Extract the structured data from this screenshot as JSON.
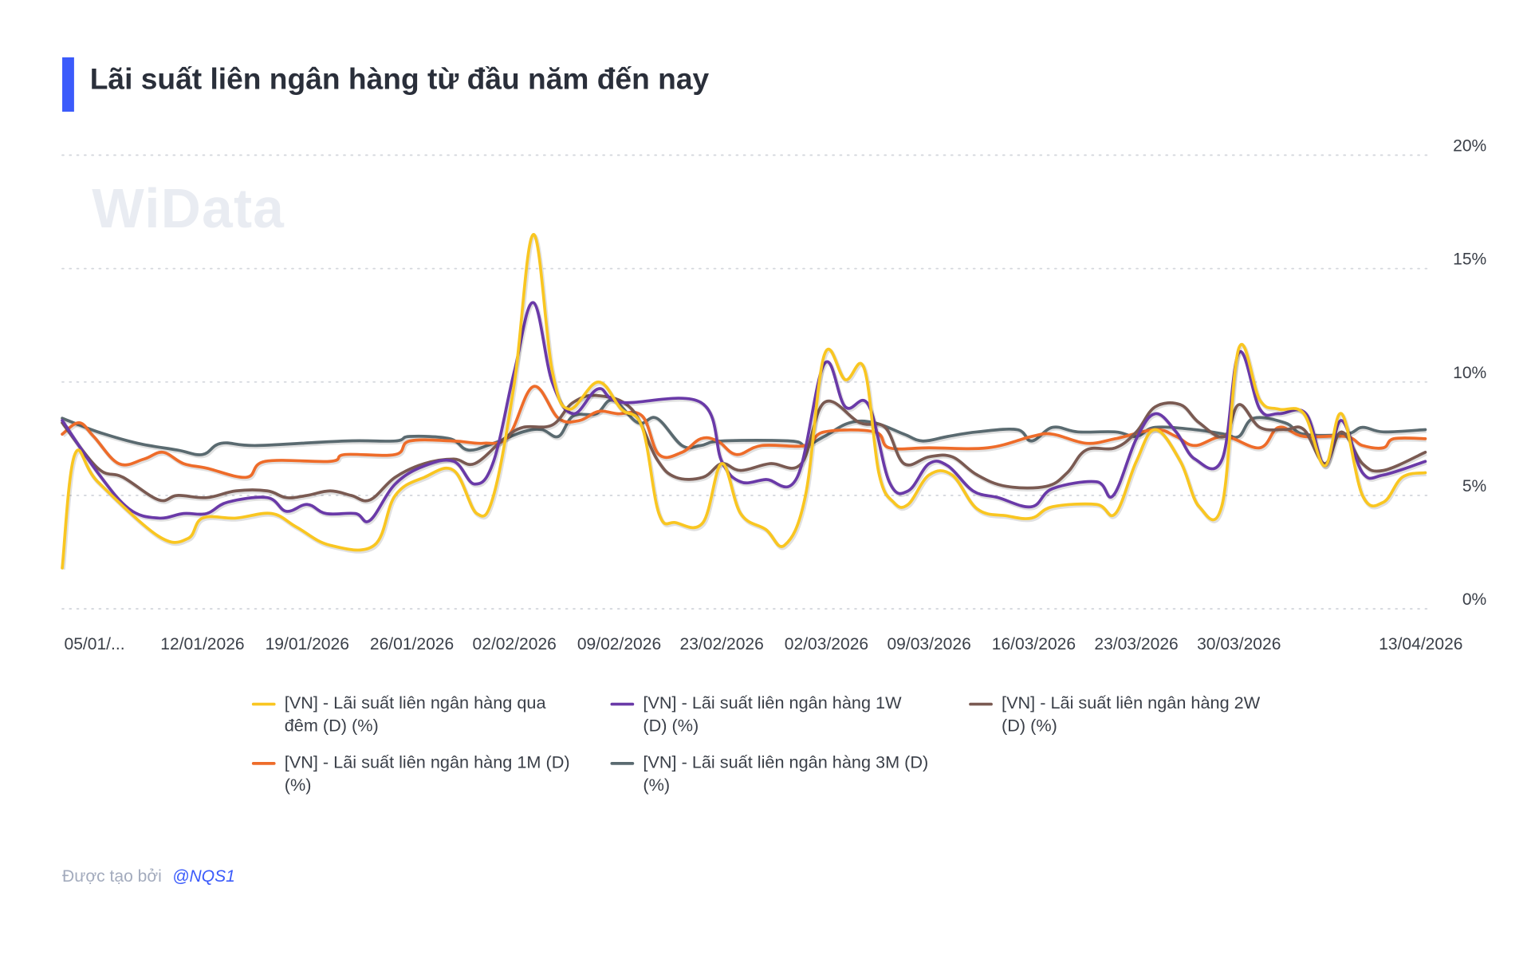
{
  "title": "Lãi suất liên ngân hàng từ đầu năm đến nay",
  "watermark": "WiData",
  "footer": {
    "prefix": "Được tạo bởi",
    "author": "@NQS1"
  },
  "chart_data": {
    "type": "line",
    "title": "Lãi suất liên ngân hàng từ đầu năm đến nay",
    "xlabel": "",
    "ylabel": "",
    "x_unit": "trading-day index from 05/01/2026",
    "xlim": [
      0,
      65.1
    ],
    "ylim": [
      0,
      20
    ],
    "grid": true,
    "y_ticks": [
      {
        "value": 20,
        "label": "20%"
      },
      {
        "value": 15,
        "label": "15%"
      },
      {
        "value": 10,
        "label": "10%"
      },
      {
        "value": 5,
        "label": "5%"
      },
      {
        "value": 0,
        "label": "0%"
      }
    ],
    "x_ticks": [
      {
        "value": 1.6,
        "label": "05/01/..."
      },
      {
        "value": 6.7,
        "label": "12/01/2026"
      },
      {
        "value": 11.7,
        "label": "19/01/2026"
      },
      {
        "value": 16.7,
        "label": "26/01/2026"
      },
      {
        "value": 21.6,
        "label": "02/02/2026"
      },
      {
        "value": 26.6,
        "label": "09/02/2026"
      },
      {
        "value": 31.5,
        "label": "23/02/2026"
      },
      {
        "value": 36.5,
        "label": "02/03/2026"
      },
      {
        "value": 41.4,
        "label": "09/03/2026"
      },
      {
        "value": 46.4,
        "label": "16/03/2026"
      },
      {
        "value": 51.3,
        "label": "23/03/2026"
      },
      {
        "value": 56.2,
        "label": "30/03/2026"
      },
      {
        "value": 64.7,
        "label": "13/04/2026"
      }
    ],
    "legend_position": "bottom",
    "series": [
      {
        "name": "[VN] - Lãi suất liên ngân hàng qua đêm (D) (%)",
        "color": "#f9c621",
        "points": [
          [
            0,
            1.8
          ],
          [
            0.6,
            6.8
          ],
          [
            1.7,
            5.6
          ],
          [
            4.6,
            3.2
          ],
          [
            6.0,
            3.1
          ],
          [
            6.7,
            4.0
          ],
          [
            8.3,
            4.0
          ],
          [
            10.0,
            4.2
          ],
          [
            11.2,
            3.6
          ],
          [
            12.8,
            2.8
          ],
          [
            14.9,
            2.8
          ],
          [
            15.9,
            5.0
          ],
          [
            17.3,
            5.8
          ],
          [
            18.7,
            6.1
          ],
          [
            19.8,
            4.2
          ],
          [
            20.6,
            5.0
          ],
          [
            21.6,
            10.0
          ],
          [
            22.5,
            16.5
          ],
          [
            23.4,
            10.5
          ],
          [
            24.2,
            8.8
          ],
          [
            25.6,
            10.0
          ],
          [
            26.7,
            8.8
          ],
          [
            27.7,
            8.0
          ],
          [
            28.5,
            4.2
          ],
          [
            29.3,
            3.8
          ],
          [
            30.6,
            3.8
          ],
          [
            31.5,
            6.4
          ],
          [
            32.4,
            4.2
          ],
          [
            33.6,
            3.5
          ],
          [
            34.5,
            2.8
          ],
          [
            35.5,
            5.0
          ],
          [
            36.4,
            11.2
          ],
          [
            37.4,
            10.1
          ],
          [
            38.3,
            10.6
          ],
          [
            39.0,
            6.0
          ],
          [
            39.7,
            4.7
          ],
          [
            40.4,
            4.6
          ],
          [
            41.4,
            5.9
          ],
          [
            42.5,
            5.9
          ],
          [
            43.7,
            4.4
          ],
          [
            45.1,
            4.1
          ],
          [
            46.3,
            4.0
          ],
          [
            47.3,
            4.5
          ],
          [
            49.4,
            4.6
          ],
          [
            50.3,
            4.2
          ],
          [
            51.3,
            6.5
          ],
          [
            52.2,
            7.9
          ],
          [
            53.4,
            6.5
          ],
          [
            54.3,
            4.5
          ],
          [
            55.4,
            4.6
          ],
          [
            56.2,
            11.5
          ],
          [
            57.2,
            9.2
          ],
          [
            58.1,
            8.8
          ],
          [
            59.3,
            8.6
          ],
          [
            60.3,
            6.3
          ],
          [
            61.1,
            8.6
          ],
          [
            62.1,
            5.0
          ],
          [
            63.1,
            4.7
          ],
          [
            64.0,
            5.8
          ],
          [
            65.1,
            6.0
          ]
        ]
      },
      {
        "name": "[VN] - Lãi suất liên ngân hàng 1W (D) (%)",
        "color": "#6a3aa8",
        "points": [
          [
            0,
            8.3
          ],
          [
            1.7,
            6.0
          ],
          [
            3.2,
            4.4
          ],
          [
            4.6,
            4.0
          ],
          [
            5.8,
            4.2
          ],
          [
            6.9,
            4.2
          ],
          [
            7.9,
            4.7
          ],
          [
            9.8,
            4.9
          ],
          [
            10.7,
            4.3
          ],
          [
            11.7,
            4.6
          ],
          [
            12.6,
            4.2
          ],
          [
            14.0,
            4.2
          ],
          [
            14.7,
            3.9
          ],
          [
            15.9,
            5.5
          ],
          [
            17.3,
            6.3
          ],
          [
            18.7,
            6.5
          ],
          [
            19.7,
            5.5
          ],
          [
            20.6,
            6.5
          ],
          [
            21.6,
            10.5
          ],
          [
            22.5,
            13.5
          ],
          [
            23.4,
            10.0
          ],
          [
            24.4,
            8.6
          ],
          [
            25.6,
            9.7
          ],
          [
            26.7,
            9.1
          ],
          [
            30.5,
            9.1
          ],
          [
            31.5,
            6.5
          ],
          [
            32.4,
            5.6
          ],
          [
            33.6,
            5.7
          ],
          [
            35.1,
            5.8
          ],
          [
            36.4,
            10.8
          ],
          [
            37.4,
            8.9
          ],
          [
            38.5,
            9.0
          ],
          [
            39.5,
            5.6
          ],
          [
            40.4,
            5.2
          ],
          [
            41.4,
            6.4
          ],
          [
            42.3,
            6.3
          ],
          [
            43.5,
            5.2
          ],
          [
            44.7,
            4.9
          ],
          [
            46.3,
            4.5
          ],
          [
            47.3,
            5.3
          ],
          [
            49.4,
            5.6
          ],
          [
            50.2,
            5.0
          ],
          [
            51.3,
            7.5
          ],
          [
            52.2,
            8.6
          ],
          [
            53.2,
            7.8
          ],
          [
            54.1,
            6.6
          ],
          [
            55.4,
            6.6
          ],
          [
            56.2,
            11.3
          ],
          [
            57.2,
            8.8
          ],
          [
            58.1,
            8.6
          ],
          [
            59.4,
            8.6
          ],
          [
            60.3,
            6.3
          ],
          [
            61.1,
            8.3
          ],
          [
            62.1,
            6.0
          ],
          [
            63.1,
            5.9
          ],
          [
            65.1,
            6.5
          ]
        ]
      },
      {
        "name": "[VN] - Lãi suất liên ngân hàng 2W (D) (%)",
        "color": "#7a5a52",
        "points": [
          [
            0,
            8.2
          ],
          [
            1.7,
            6.2
          ],
          [
            2.9,
            5.8
          ],
          [
            4.6,
            4.8
          ],
          [
            5.5,
            5.0
          ],
          [
            6.9,
            4.9
          ],
          [
            8.3,
            5.2
          ],
          [
            9.8,
            5.2
          ],
          [
            10.7,
            4.9
          ],
          [
            11.7,
            5.0
          ],
          [
            12.8,
            5.2
          ],
          [
            13.8,
            5.0
          ],
          [
            14.7,
            4.8
          ],
          [
            15.9,
            5.8
          ],
          [
            17.3,
            6.4
          ],
          [
            18.7,
            6.6
          ],
          [
            19.7,
            6.4
          ],
          [
            21.1,
            7.5
          ],
          [
            22.0,
            8.0
          ],
          [
            23.4,
            8.1
          ],
          [
            24.4,
            9.1
          ],
          [
            25.6,
            9.4
          ],
          [
            27.2,
            8.8
          ],
          [
            28.4,
            6.6
          ],
          [
            29.3,
            5.8
          ],
          [
            30.6,
            5.8
          ],
          [
            31.5,
            6.4
          ],
          [
            32.4,
            6.1
          ],
          [
            33.8,
            6.4
          ],
          [
            35.3,
            6.4
          ],
          [
            36.4,
            9.1
          ],
          [
            38.1,
            8.2
          ],
          [
            39.3,
            8.0
          ],
          [
            40.2,
            6.4
          ],
          [
            41.4,
            6.7
          ],
          [
            42.5,
            6.7
          ],
          [
            43.7,
            5.9
          ],
          [
            45.1,
            5.4
          ],
          [
            47.0,
            5.4
          ],
          [
            48.0,
            6.0
          ],
          [
            48.9,
            7.0
          ],
          [
            50.3,
            7.1
          ],
          [
            51.3,
            7.8
          ],
          [
            52.2,
            8.9
          ],
          [
            53.4,
            9.0
          ],
          [
            54.3,
            8.2
          ],
          [
            55.5,
            7.6
          ],
          [
            56.2,
            9.0
          ],
          [
            57.2,
            8.0
          ],
          [
            58.4,
            7.9
          ],
          [
            59.3,
            7.9
          ],
          [
            60.3,
            6.4
          ],
          [
            61.1,
            7.8
          ],
          [
            62.1,
            6.4
          ],
          [
            63.1,
            6.1
          ],
          [
            65.1,
            6.9
          ]
        ]
      },
      {
        "name": "[VN] - Lãi suất liên ngân hàng 1M (D) (%)",
        "color": "#ee6c2a",
        "points": [
          [
            0,
            7.7
          ],
          [
            0.8,
            8.2
          ],
          [
            1.5,
            7.6
          ],
          [
            2.7,
            6.4
          ],
          [
            3.9,
            6.6
          ],
          [
            4.8,
            6.9
          ],
          [
            5.8,
            6.4
          ],
          [
            6.9,
            6.2
          ],
          [
            8.8,
            5.8
          ],
          [
            9.7,
            6.5
          ],
          [
            12.8,
            6.5
          ],
          [
            13.5,
            6.8
          ],
          [
            15.9,
            6.8
          ],
          [
            16.6,
            7.4
          ],
          [
            18.7,
            7.4
          ],
          [
            20.1,
            7.3
          ],
          [
            21.3,
            7.6
          ],
          [
            22.5,
            9.8
          ],
          [
            23.7,
            8.4
          ],
          [
            24.7,
            8.3
          ],
          [
            25.6,
            8.7
          ],
          [
            26.5,
            8.6
          ],
          [
            27.7,
            8.5
          ],
          [
            28.5,
            6.8
          ],
          [
            29.6,
            6.9
          ],
          [
            30.5,
            7.5
          ],
          [
            31.3,
            7.4
          ],
          [
            32.2,
            6.8
          ],
          [
            33.4,
            7.2
          ],
          [
            35.5,
            7.2
          ],
          [
            36.4,
            7.8
          ],
          [
            38.8,
            7.8
          ],
          [
            39.5,
            7.1
          ],
          [
            41.4,
            7.1
          ],
          [
            44.2,
            7.1
          ],
          [
            46.3,
            7.6
          ],
          [
            47.3,
            7.7
          ],
          [
            48.9,
            7.3
          ],
          [
            50.3,
            7.5
          ],
          [
            52.2,
            7.9
          ],
          [
            53.2,
            7.6
          ],
          [
            54.1,
            7.2
          ],
          [
            55.5,
            7.6
          ],
          [
            57.2,
            7.1
          ],
          [
            58.1,
            8.0
          ],
          [
            59.3,
            7.6
          ],
          [
            61.3,
            7.6
          ],
          [
            62.1,
            7.2
          ],
          [
            63.1,
            7.1
          ],
          [
            63.6,
            7.5
          ],
          [
            65.1,
            7.5
          ]
        ]
      },
      {
        "name": "[VN] - Lãi suất liên ngân hàng 3M (D) (%)",
        "color": "#5a6a70",
        "points": [
          [
            0,
            8.4
          ],
          [
            1.7,
            7.8
          ],
          [
            3.6,
            7.3
          ],
          [
            5.5,
            7.0
          ],
          [
            6.7,
            6.8
          ],
          [
            7.6,
            7.3
          ],
          [
            9.3,
            7.2
          ],
          [
            13.5,
            7.4
          ],
          [
            15.9,
            7.4
          ],
          [
            16.6,
            7.6
          ],
          [
            18.5,
            7.5
          ],
          [
            19.4,
            7.0
          ],
          [
            20.6,
            7.3
          ],
          [
            22.0,
            7.8
          ],
          [
            22.9,
            7.9
          ],
          [
            23.7,
            7.6
          ],
          [
            24.4,
            8.5
          ],
          [
            25.5,
            8.6
          ],
          [
            26.3,
            9.2
          ],
          [
            27.5,
            8.2
          ],
          [
            28.4,
            8.4
          ],
          [
            29.6,
            7.2
          ],
          [
            30.5,
            7.2
          ],
          [
            31.5,
            7.4
          ],
          [
            34.8,
            7.4
          ],
          [
            35.5,
            7.2
          ],
          [
            36.4,
            7.6
          ],
          [
            37.6,
            8.2
          ],
          [
            38.8,
            8.2
          ],
          [
            40.2,
            7.7
          ],
          [
            41.1,
            7.4
          ],
          [
            42.3,
            7.6
          ],
          [
            43.7,
            7.8
          ],
          [
            45.6,
            7.9
          ],
          [
            46.3,
            7.4
          ],
          [
            47.3,
            8.0
          ],
          [
            48.5,
            7.8
          ],
          [
            50.3,
            7.8
          ],
          [
            51.3,
            7.6
          ],
          [
            52.2,
            8.0
          ],
          [
            54.1,
            7.9
          ],
          [
            55.5,
            7.7
          ],
          [
            56.2,
            7.6
          ],
          [
            56.9,
            8.4
          ],
          [
            58.4,
            8.2
          ],
          [
            59.3,
            7.7
          ],
          [
            61.3,
            7.7
          ],
          [
            62.1,
            8.0
          ],
          [
            63.1,
            7.8
          ],
          [
            65.1,
            7.9
          ]
        ]
      }
    ]
  }
}
